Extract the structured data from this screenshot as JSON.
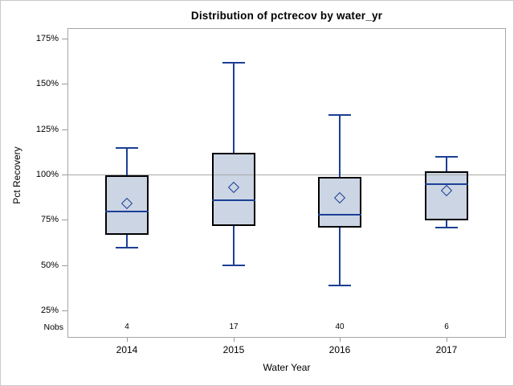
{
  "chart_data": {
    "type": "boxplot",
    "title": "Distribution of pctrecov by water_yr",
    "xlabel": "Water Year",
    "ylabel": "Pct Recovery",
    "nobs_label": "Nobs",
    "categories": [
      "2014",
      "2015",
      "2016",
      "2017"
    ],
    "y_ticks": [
      {
        "value": 175,
        "label": "175%"
      },
      {
        "value": 150,
        "label": "150%"
      },
      {
        "value": 125,
        "label": "125%"
      },
      {
        "value": 100,
        "label": "100%"
      },
      {
        "value": 75,
        "label": "75%"
      },
      {
        "value": 50,
        "label": "50%"
      },
      {
        "value": 25,
        "label": "25%"
      }
    ],
    "ylim": [
      20,
      181
    ],
    "reference_line": 100,
    "grid": "off",
    "series": [
      {
        "category": "2014",
        "nobs": 4,
        "whisker_low": 60,
        "q1": 67,
        "median": 80,
        "mean": 84,
        "q3": 100,
        "whisker_high": 115
      },
      {
        "category": "2015",
        "nobs": 17,
        "whisker_low": 50,
        "q1": 72,
        "median": 86,
        "mean": 93,
        "q3": 112,
        "whisker_high": 162
      },
      {
        "category": "2016",
        "nobs": 40,
        "whisker_low": 39,
        "q1": 71,
        "median": 78,
        "mean": 87,
        "q3": 99,
        "whisker_high": 133
      },
      {
        "category": "2017",
        "nobs": 6,
        "whisker_low": 71,
        "q1": 75,
        "median": 95,
        "mean": 91,
        "q3": 102,
        "whisker_high": 110
      }
    ],
    "colors": {
      "box_fill": "#cbd5e4",
      "box_border": "#000000",
      "line": "#1c3f94",
      "reference_line": "#a9a9a9",
      "axis": "#a6a6a6",
      "text": "#000000"
    }
  }
}
